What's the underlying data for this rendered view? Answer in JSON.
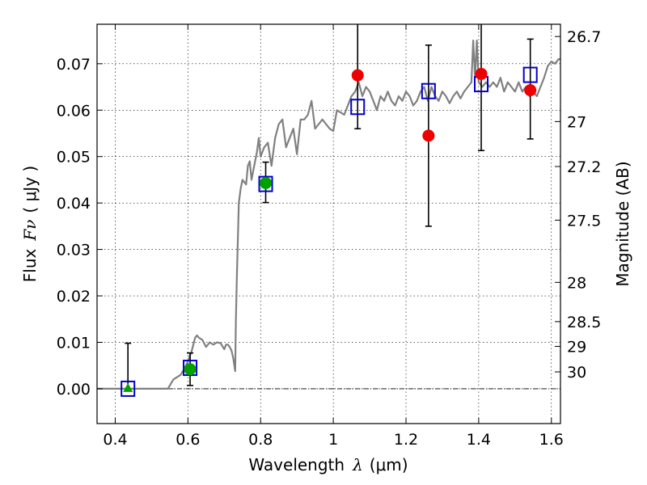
{
  "chart_data": {
    "type": "scatter",
    "xlabel": "Wavelength",
    "xlabel_math": "λ",
    "xlabel_unit": "(μm)",
    "ylabel": "Flux",
    "ylabel_math": "Fν",
    "ylabel_unit": "( μJy )",
    "y2label": "Magnitude (AB)",
    "xlim": [
      0.35,
      1.625
    ],
    "ylim": [
      -0.0075,
      0.0785
    ],
    "x_ticks": [
      0.4,
      0.6,
      0.8,
      1.0,
      1.2,
      1.4,
      1.6
    ],
    "x_tick_labels": [
      "0.4",
      "0.6",
      "0.8",
      "1",
      "1.2",
      "1.4",
      "1.6"
    ],
    "y_ticks": [
      0.0,
      0.01,
      0.02,
      0.03,
      0.04,
      0.05,
      0.06,
      0.07
    ],
    "y_tick_labels": [
      "0.00",
      "0.01",
      "0.02",
      "0.03",
      "0.04",
      "0.05",
      "0.06",
      "0.07"
    ],
    "mag_ticks": [
      26.7,
      27,
      27.2,
      27.5,
      28,
      28.5,
      29,
      30
    ],
    "mag_tick_labels": [
      "26.7",
      "27",
      "27.2",
      "27.5",
      "28",
      "28.5",
      "29",
      "30"
    ],
    "grid": true,
    "colors": {
      "model": "#808080",
      "model_points": "#0000cc",
      "observed_red": "#ee0000",
      "observed_green": "#00a000",
      "error_bar": "#000000",
      "zero_line": "#000000"
    },
    "series": [
      {
        "kind": "model_spectrum",
        "x": [
          0.35,
          0.4,
          0.45,
          0.5,
          0.545,
          0.56,
          0.58,
          0.595,
          0.6,
          0.61,
          0.62,
          0.625,
          0.63,
          0.64,
          0.65,
          0.66,
          0.67,
          0.68,
          0.69,
          0.7,
          0.705,
          0.71,
          0.715,
          0.72,
          0.725,
          0.73,
          0.732,
          0.735,
          0.74,
          0.745,
          0.75,
          0.76,
          0.765,
          0.77,
          0.775,
          0.78,
          0.79,
          0.795,
          0.8,
          0.81,
          0.82,
          0.83,
          0.84,
          0.85,
          0.86,
          0.87,
          0.88,
          0.89,
          0.9,
          0.91,
          0.92,
          0.93,
          0.94,
          0.95,
          0.96,
          0.97,
          0.98,
          0.99,
          1.0,
          1.01,
          1.02,
          1.03,
          1.04,
          1.05,
          1.06,
          1.07,
          1.08,
          1.09,
          1.1,
          1.11,
          1.12,
          1.13,
          1.14,
          1.15,
          1.16,
          1.17,
          1.18,
          1.19,
          1.2,
          1.21,
          1.22,
          1.23,
          1.24,
          1.25,
          1.26,
          1.27,
          1.28,
          1.29,
          1.3,
          1.31,
          1.32,
          1.33,
          1.34,
          1.35,
          1.36,
          1.37,
          1.38,
          1.385,
          1.39,
          1.395,
          1.4,
          1.41,
          1.42,
          1.43,
          1.44,
          1.45,
          1.46,
          1.47,
          1.48,
          1.49,
          1.5,
          1.51,
          1.52,
          1.53,
          1.54,
          1.55,
          1.56,
          1.57,
          1.58,
          1.59,
          1.6,
          1.61,
          1.62,
          1.625
        ],
        "y": [
          0.0,
          0.0,
          0.0,
          0.0,
          0.0,
          0.002,
          0.003,
          0.005,
          0.006,
          0.008,
          0.011,
          0.0115,
          0.011,
          0.0105,
          0.009,
          0.01,
          0.0095,
          0.01,
          0.0098,
          0.0085,
          0.0095,
          0.0095,
          0.009,
          0.0082,
          0.0065,
          0.0038,
          0.015,
          0.025,
          0.04,
          0.043,
          0.045,
          0.044,
          0.048,
          0.049,
          0.045,
          0.047,
          0.051,
          0.054,
          0.05,
          0.052,
          0.053,
          0.048,
          0.054,
          0.057,
          0.058,
          0.052,
          0.054,
          0.056,
          0.0505,
          0.058,
          0.058,
          0.059,
          0.062,
          0.056,
          0.057,
          0.058,
          0.057,
          0.056,
          0.0555,
          0.06,
          0.0595,
          0.059,
          0.061,
          0.063,
          0.064,
          0.066,
          0.063,
          0.065,
          0.064,
          0.062,
          0.06,
          0.063,
          0.062,
          0.064,
          0.062,
          0.061,
          0.063,
          0.062,
          0.064,
          0.063,
          0.061,
          0.062,
          0.064,
          0.065,
          0.062,
          0.065,
          0.063,
          0.062,
          0.064,
          0.063,
          0.0615,
          0.063,
          0.064,
          0.0625,
          0.064,
          0.065,
          0.066,
          0.075,
          0.067,
          0.075,
          0.066,
          0.065,
          0.066,
          0.065,
          0.066,
          0.065,
          0.067,
          0.064,
          0.066,
          0.065,
          0.064,
          0.066,
          0.064,
          0.065,
          0.063,
          0.064,
          0.063,
          0.065,
          0.067,
          0.0695,
          0.0705,
          0.07,
          0.071,
          0.071
        ]
      },
      {
        "kind": "model_photometry",
        "marker": "open-square",
        "x": [
          0.435,
          0.606,
          0.814,
          1.067,
          1.262,
          1.407,
          1.542
        ],
        "y": [
          0.0,
          0.0045,
          0.0441,
          0.0607,
          0.0641,
          0.0656,
          0.0676
        ]
      },
      {
        "kind": "observed",
        "marker": "filled-circle",
        "color": "green",
        "x": [
          0.606,
          0.814
        ],
        "y": [
          0.0042,
          0.0443
        ],
        "yerr_low": [
          0.0035,
          0.0042
        ],
        "yerr_high": [
          0.0035,
          0.0045
        ]
      },
      {
        "kind": "observed",
        "marker": "filled-triangle",
        "color": "green",
        "x": [
          0.435
        ],
        "y": [
          0.0
        ],
        "yerr_low": [
          0.0
        ],
        "yerr_high": [
          0.0098
        ]
      },
      {
        "kind": "observed",
        "marker": "filled-circle",
        "color": "red",
        "x": [
          1.067,
          1.262,
          1.407,
          1.542
        ],
        "y": [
          0.0675,
          0.0545,
          0.0678,
          0.0643
        ],
        "yerr_low": [
          0.0115,
          0.0195,
          0.0165,
          0.0105
        ],
        "yerr_high": [
          0.0115,
          0.0195,
          0.0165,
          0.011
        ]
      }
    ]
  }
}
